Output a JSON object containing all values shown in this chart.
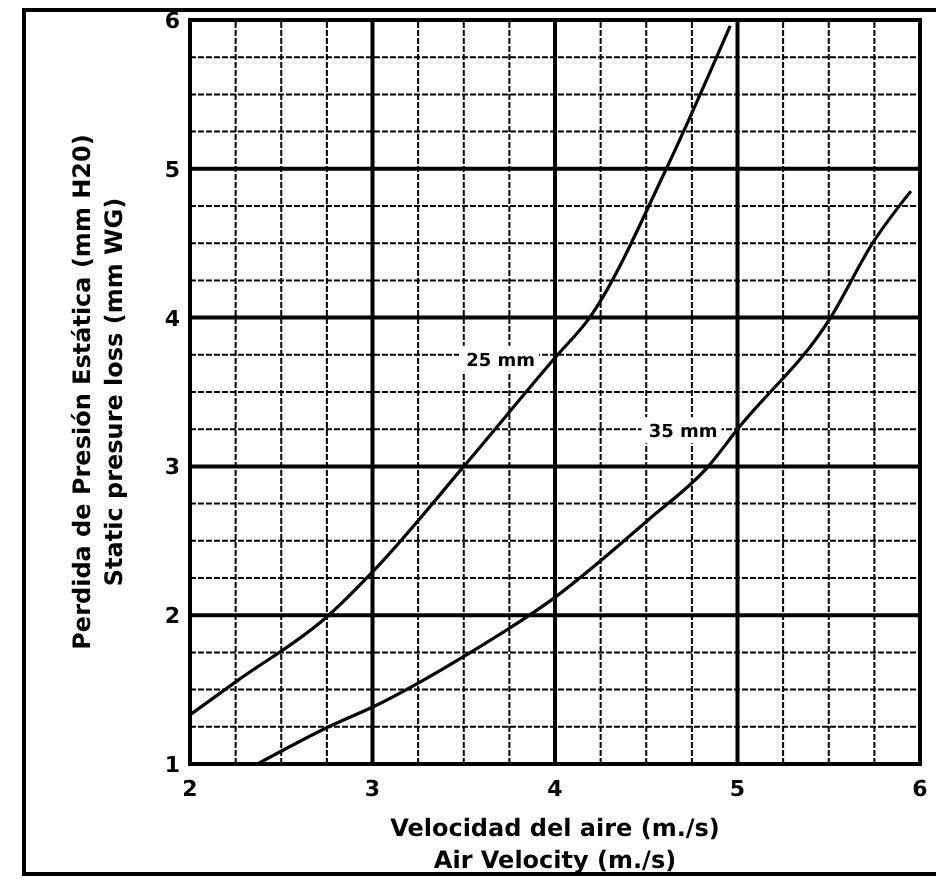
{
  "chart_data": {
    "type": "line",
    "xlabel": "Velocidad del aire (m./s)\nAir Velocity (m./s)",
    "ylabel": "Perdida de Presión Estática (mm H20)\nStatic presure loss (mm WG)",
    "xlim": [
      2,
      6
    ],
    "ylim": [
      1,
      6
    ],
    "xticks": [
      2,
      3,
      4,
      5,
      6
    ],
    "yticks": [
      1,
      2,
      3,
      4,
      5,
      6
    ],
    "grid": true,
    "line_style": "solid",
    "series": [
      {
        "name": "25 mm",
        "color": "#000000",
        "x": [
          2,
          2.26,
          2.76,
          3.03,
          3.5,
          4,
          4.19,
          4.61,
          4.96
        ],
        "values": [
          1.33,
          1.56,
          2,
          2.33,
          3,
          3.73,
          4,
          5,
          5.96
        ]
      },
      {
        "name": "35 mm",
        "color": "#000000",
        "x": [
          2.37,
          2.76,
          3.03,
          3.51,
          4,
          4.52,
          4.84,
          5,
          5.51,
          5.74,
          5.95
        ],
        "values": [
          1,
          1.25,
          1.4,
          1.73,
          2.12,
          2.65,
          3,
          3.25,
          4,
          4.5,
          4.85
        ]
      }
    ]
  }
}
